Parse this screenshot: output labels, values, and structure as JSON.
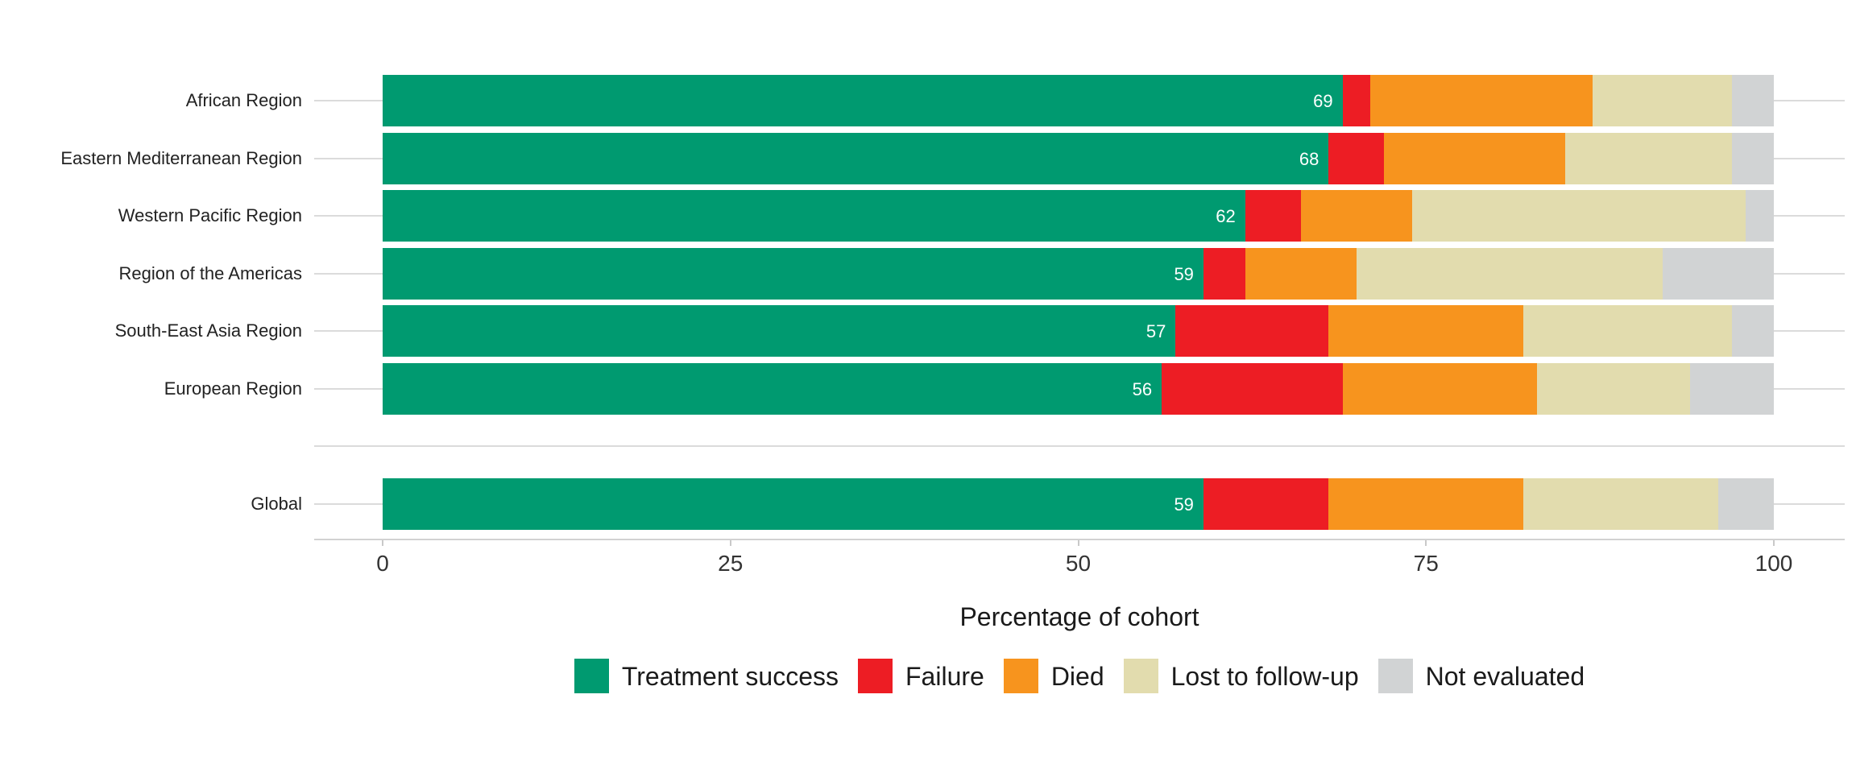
{
  "chart_data": {
    "type": "bar",
    "orientation": "horizontal",
    "stacked": true,
    "title": "",
    "xlabel": "Percentage of cohort",
    "ylabel": "",
    "xlim": [
      0,
      100
    ],
    "x_ticks": [
      "0",
      "25",
      "50",
      "75",
      "100"
    ],
    "x_tick_values": [
      0,
      25,
      50,
      75,
      100
    ],
    "grid": "one light-gray horizontal gridline per category row, drawn behind bars; extra empty gridline row separates regions from Global",
    "legend_position": "bottom",
    "value_labels_note": "Treatment success percentage printed in white, right-aligned inside the green segment",
    "series": [
      {
        "name": "Treatment success",
        "color": "#009A70"
      },
      {
        "name": "Failure",
        "color": "#ED1D24"
      },
      {
        "name": "Died",
        "color": "#F7941E"
      },
      {
        "name": "Lost to follow-up",
        "color": "#E2DCAE"
      },
      {
        "name": "Not evaluated",
        "color": "#D1D3D4"
      }
    ],
    "rows": [
      {
        "label": "African Region",
        "group": "region",
        "values": [
          69,
          2,
          16,
          10,
          3
        ]
      },
      {
        "label": "Eastern Mediterranean Region",
        "group": "region",
        "values": [
          68,
          4,
          13,
          12,
          3
        ]
      },
      {
        "label": "Western Pacific Region",
        "group": "region",
        "values": [
          62,
          4,
          8,
          24,
          2
        ]
      },
      {
        "label": "Region of the Americas",
        "group": "region",
        "values": [
          59,
          3,
          8,
          22,
          8
        ]
      },
      {
        "label": "South-East Asia Region",
        "group": "region",
        "values": [
          57,
          11,
          14,
          15,
          3
        ]
      },
      {
        "label": "European Region",
        "group": "region",
        "values": [
          56,
          13,
          14,
          11,
          6
        ]
      },
      {
        "label": "Global",
        "group": "global",
        "values": [
          59,
          9,
          14,
          14,
          4
        ]
      }
    ]
  }
}
